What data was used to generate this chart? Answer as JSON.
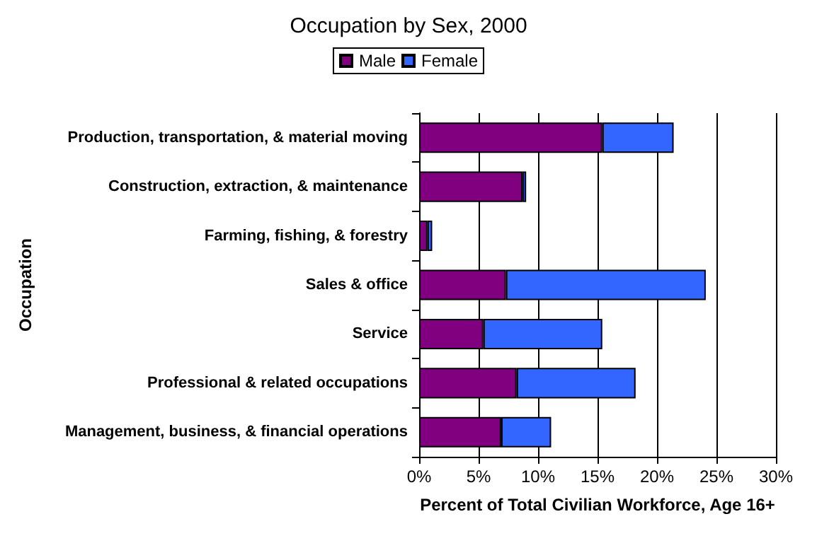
{
  "chart_data": {
    "type": "bar",
    "orientation": "horizontal",
    "stacked": true,
    "title": "Occupation by Sex, 2000",
    "xlabel": "Percent of Total Civilian Workforce, Age 16+",
    "ylabel": "Occupation",
    "categories": [
      "Production, transportation, & material moving",
      "Construction, extraction, & maintenance",
      "Farming, fishing, & forestry",
      "Sales & office",
      "Service",
      "Professional & related occupations",
      "Management, business, & financial operations"
    ],
    "series": [
      {
        "name": "Male",
        "color": "#800080",
        "values": [
          15.4,
          8.7,
          0.7,
          7.3,
          5.4,
          8.2,
          6.9
        ]
      },
      {
        "name": "Female",
        "color": "#3366ff",
        "values": [
          6.0,
          0.3,
          0.4,
          16.8,
          10.0,
          10.0,
          4.2
        ]
      }
    ],
    "xlim": [
      0,
      30
    ],
    "xticks": [
      {
        "value": 0,
        "label": "0%"
      },
      {
        "value": 5,
        "label": "5%"
      },
      {
        "value": 10,
        "label": "10%"
      },
      {
        "value": 15,
        "label": "15%"
      },
      {
        "value": 20,
        "label": "20%"
      },
      {
        "value": 25,
        "label": "25%"
      },
      {
        "value": 30,
        "label": "30%"
      }
    ],
    "grid": "x",
    "legend": "top"
  }
}
